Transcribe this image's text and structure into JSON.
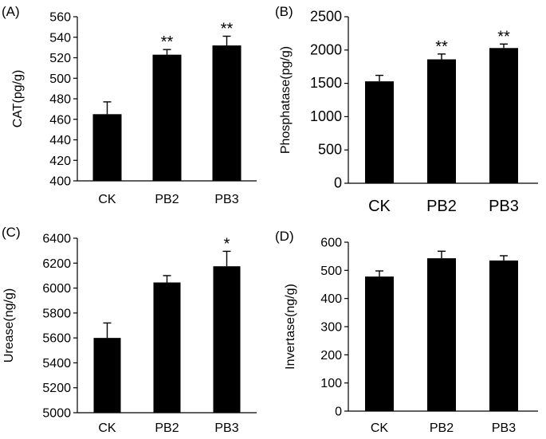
{
  "chart_data": [
    {
      "panel": "(A)",
      "type": "bar",
      "categories": [
        "CK",
        "PB2",
        "PB3"
      ],
      "values": [
        465,
        523,
        532
      ],
      "errors": [
        12,
        5,
        9
      ],
      "significance": [
        "",
        "**",
        "**"
      ],
      "ylabel": "CAT(pg/g)",
      "ylim": [
        400,
        560
      ],
      "yticks": [
        400,
        420,
        440,
        460,
        480,
        500,
        520,
        540,
        560
      ],
      "bar_color": "#000000"
    },
    {
      "panel": "(B)",
      "type": "bar",
      "categories": [
        "CK",
        "PB2",
        "PB3"
      ],
      "values": [
        1530,
        1860,
        2030
      ],
      "errors": [
        90,
        80,
        60
      ],
      "significance": [
        "",
        "**",
        "**"
      ],
      "ylabel": "Phosphatase(pg/g)",
      "ylim": [
        0,
        2500
      ],
      "yticks": [
        0,
        500,
        1000,
        1500,
        2000,
        2500
      ],
      "bar_color": "#000000"
    },
    {
      "panel": "(C)",
      "type": "bar",
      "categories": [
        "CK",
        "PB2",
        "PB3"
      ],
      "values": [
        5600,
        6045,
        6175
      ],
      "errors": [
        120,
        55,
        120
      ],
      "significance": [
        "",
        "",
        "*"
      ],
      "ylabel": "Urease(ng/g)",
      "ylim": [
        5000,
        6400
      ],
      "yticks": [
        5000,
        5200,
        5400,
        5600,
        5800,
        6000,
        6200,
        6400
      ],
      "bar_color": "#000000"
    },
    {
      "panel": "(D)",
      "type": "bar",
      "categories": [
        "CK",
        "PB2",
        "PB3"
      ],
      "values": [
        478,
        543,
        535
      ],
      "errors": [
        20,
        25,
        17
      ],
      "significance": [
        "",
        "",
        ""
      ],
      "ylabel": "Invertase(ng/g)",
      "ylim": [
        0,
        600
      ],
      "yticks": [
        0,
        100,
        200,
        300,
        400,
        500,
        600
      ],
      "bar_color": "#000000"
    }
  ]
}
